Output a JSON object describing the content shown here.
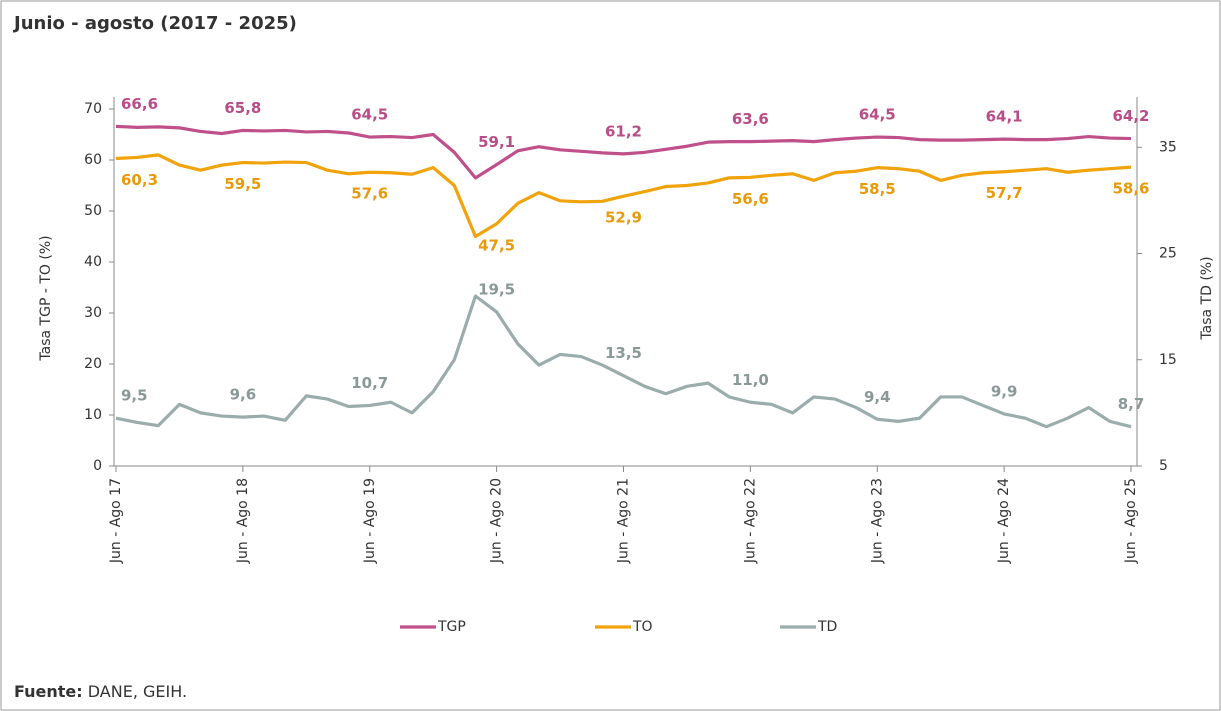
{
  "chart_data": {
    "type": "line",
    "title": "Junio - agosto (2017 - 2025)",
    "ylabel": "Tasa TGP - TO (%)",
    "y2label": "Tasa TD (%)",
    "source_label": "Fuente:",
    "source_text": "DANE, GEIH.",
    "legend": "bottom",
    "categories": [
      "Jun - Ago 17",
      null,
      null,
      null,
      null,
      null,
      "Jun - Ago 18",
      null,
      null,
      null,
      null,
      null,
      "Jun - Ago 19",
      null,
      null,
      null,
      null,
      null,
      "Jun - Ago 20",
      null,
      null,
      null,
      null,
      null,
      "Jun - Ago 21",
      null,
      null,
      null,
      null,
      null,
      "Jun - Ago 22",
      null,
      null,
      null,
      null,
      null,
      "Jun - Ago 23",
      null,
      null,
      null,
      null,
      null,
      "Jun - Ago 24",
      null,
      null,
      null,
      null,
      null,
      "Jun - Ago 25"
    ],
    "ylim": [
      0,
      70
    ],
    "yticks": [
      0,
      10,
      20,
      30,
      40,
      50,
      60,
      70
    ],
    "y2lim": [
      5,
      38.6
    ],
    "y2ticks": [
      5,
      15,
      25,
      35
    ],
    "series": [
      {
        "name": "TGP",
        "color": "#c0508a",
        "values": [
          66.6,
          66.4,
          66.5,
          66.3,
          65.6,
          65.2,
          65.8,
          65.7,
          65.8,
          65.5,
          65.6,
          65.3,
          64.5,
          64.6,
          64.4,
          65.0,
          61.5,
          56.5,
          59.1,
          61.8,
          62.6,
          62.0,
          61.7,
          61.4,
          61.2,
          61.5,
          62.1,
          62.7,
          63.5,
          63.6,
          63.6,
          63.7,
          63.8,
          63.6,
          64.0,
          64.3,
          64.5,
          64.4,
          64.0,
          63.9,
          63.9,
          64.0,
          64.1,
          64.0,
          64.0,
          64.2,
          64.6,
          64.3,
          64.2
        ],
        "value_labels": [
          "66,6",
          null,
          null,
          null,
          null,
          null,
          "65,8",
          null,
          null,
          null,
          null,
          null,
          "64,5",
          null,
          null,
          null,
          null,
          null,
          "59,1",
          null,
          null,
          null,
          null,
          null,
          "61,2",
          null,
          null,
          null,
          null,
          null,
          "63,6",
          null,
          null,
          null,
          null,
          null,
          "64,5",
          null,
          null,
          null,
          null,
          null,
          "64,1",
          null,
          null,
          null,
          null,
          null,
          "64,2"
        ]
      },
      {
        "name": "TO",
        "color": "#f0a30a",
        "values": [
          60.3,
          60.5,
          61.0,
          59.0,
          58.0,
          59.0,
          59.5,
          59.4,
          59.6,
          59.5,
          58.0,
          57.3,
          57.6,
          57.5,
          57.2,
          58.5,
          55.0,
          45.0,
          47.5,
          51.5,
          53.6,
          52.0,
          51.8,
          51.9,
          52.9,
          53.8,
          54.8,
          55.0,
          55.5,
          56.5,
          56.6,
          57.0,
          57.3,
          56.0,
          57.5,
          57.8,
          58.5,
          58.3,
          57.8,
          56.0,
          57.0,
          57.5,
          57.7,
          58.0,
          58.3,
          57.6,
          58.0,
          58.3,
          58.6
        ],
        "value_labels": [
          "60,3",
          null,
          null,
          null,
          null,
          null,
          "59,5",
          null,
          null,
          null,
          null,
          null,
          "57,6",
          null,
          null,
          null,
          null,
          null,
          "47,5",
          null,
          null,
          null,
          null,
          null,
          "52,9",
          null,
          null,
          null,
          null,
          null,
          "56,6",
          null,
          null,
          null,
          null,
          null,
          "58,5",
          null,
          null,
          null,
          null,
          null,
          "57,7",
          null,
          null,
          null,
          null,
          null,
          "58,6"
        ]
      },
      {
        "name": "TD",
        "color": "#9aacab",
        "axis": "y2",
        "values": [
          9.5,
          9.1,
          8.8,
          10.8,
          10.0,
          9.7,
          9.6,
          9.7,
          9.3,
          11.6,
          11.3,
          10.6,
          10.7,
          11.0,
          10.0,
          12.0,
          15.0,
          21.0,
          19.5,
          16.5,
          14.5,
          15.5,
          15.3,
          14.5,
          13.5,
          12.5,
          11.8,
          12.5,
          12.8,
          11.5,
          11.0,
          10.8,
          10.0,
          11.5,
          11.3,
          10.5,
          9.4,
          9.2,
          9.5,
          11.5,
          11.5,
          10.7,
          9.9,
          9.5,
          8.7,
          9.5,
          10.5,
          9.2,
          8.7
        ],
        "value_labels": [
          "9,5",
          null,
          null,
          null,
          null,
          null,
          "9,6",
          null,
          null,
          null,
          null,
          null,
          "10,7",
          null,
          null,
          null,
          null,
          null,
          "19,5",
          null,
          null,
          null,
          null,
          null,
          "13,5",
          null,
          null,
          null,
          null,
          null,
          "11,0",
          null,
          null,
          null,
          null,
          null,
          "9,4",
          null,
          null,
          null,
          null,
          null,
          "9,9",
          null,
          null,
          null,
          null,
          null,
          "8,7"
        ]
      }
    ]
  }
}
